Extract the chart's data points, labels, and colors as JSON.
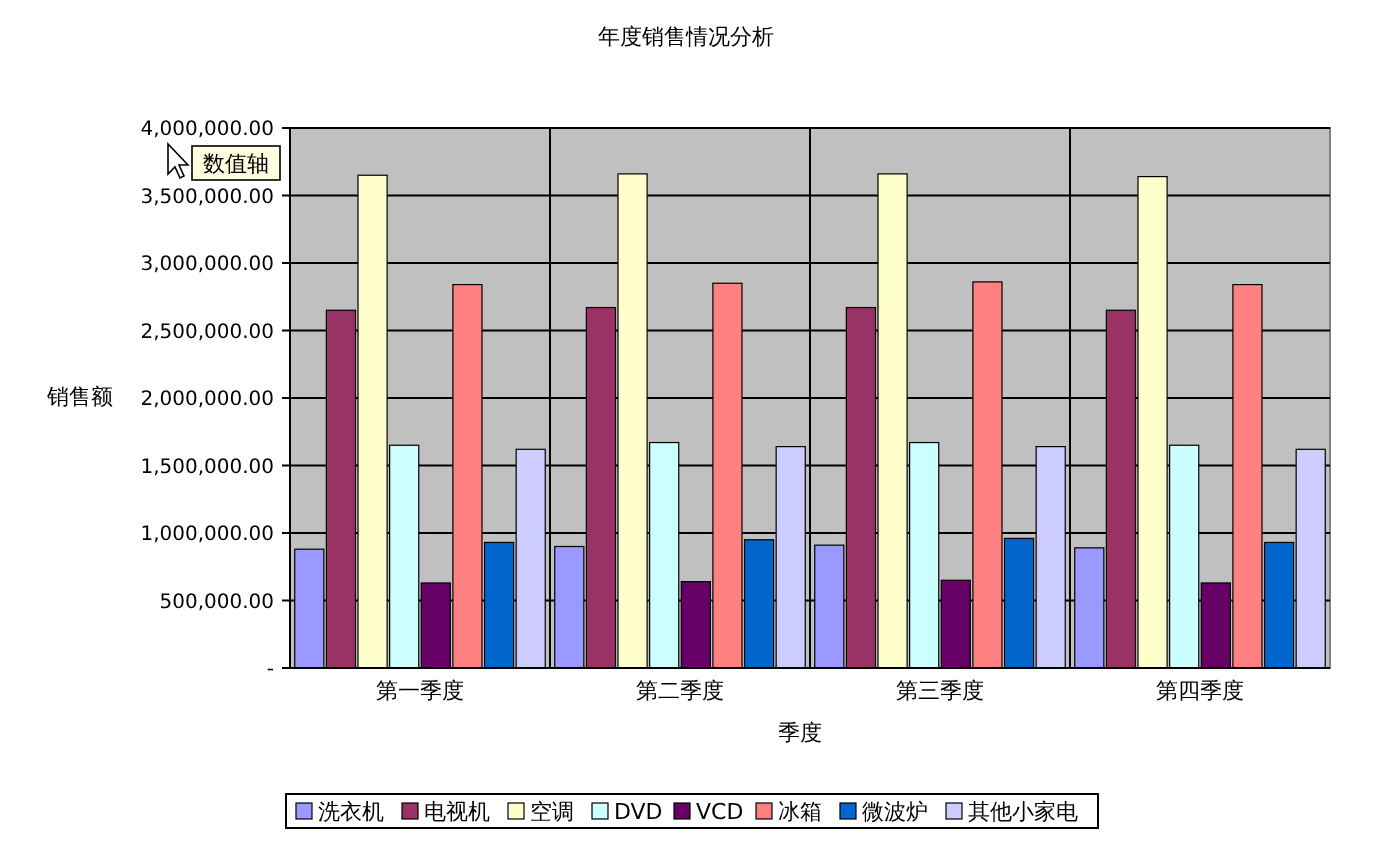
{
  "chart_data": {
    "type": "bar",
    "title": "年度销售情况分析",
    "xlabel": "季度",
    "ylabel": "销售额",
    "annotations": [
      "数值轴"
    ],
    "categories": [
      "第一季度",
      "第二季度",
      "第三季度",
      "第四季度"
    ],
    "series": [
      {
        "name": "洗衣机",
        "color": "#9999ff",
        "values": [
          880000,
          900000,
          910000,
          890000
        ]
      },
      {
        "name": "电视机",
        "color": "#993366",
        "values": [
          2650000,
          2670000,
          2670000,
          2650000
        ]
      },
      {
        "name": "空调",
        "color": "#ffffcc",
        "values": [
          3650000,
          3660000,
          3660000,
          3640000
        ]
      },
      {
        "name": "DVD",
        "color": "#ccffff",
        "values": [
          1650000,
          1670000,
          1670000,
          1650000
        ]
      },
      {
        "name": "VCD",
        "color": "#660066",
        "values": [
          630000,
          640000,
          650000,
          630000
        ]
      },
      {
        "name": "冰箱",
        "color": "#ff8080",
        "values": [
          2840000,
          2850000,
          2860000,
          2840000
        ]
      },
      {
        "name": "微波炉",
        "color": "#0066cc",
        "values": [
          930000,
          950000,
          960000,
          930000
        ]
      },
      {
        "name": "其他小家电",
        "color": "#ccccff",
        "values": [
          1620000,
          1640000,
          1640000,
          1620000
        ]
      }
    ],
    "ylim": [
      0,
      4000000
    ],
    "yticks": [
      {
        "value": 0,
        "label": "-"
      },
      {
        "value": 500000,
        "label": "500,000.00"
      },
      {
        "value": 1000000,
        "label": "1,000,000.00"
      },
      {
        "value": 1500000,
        "label": "1,500,000.00"
      },
      {
        "value": 2000000,
        "label": "2,000,000.00"
      },
      {
        "value": 2500000,
        "label": "2,500,000.00"
      },
      {
        "value": 3000000,
        "label": "3,000,000.00"
      },
      {
        "value": 3500000,
        "label": "3,500,000.00"
      },
      {
        "value": 4000000,
        "label": "4,000,000.00"
      }
    ],
    "grid": true,
    "legend": "bottom"
  }
}
